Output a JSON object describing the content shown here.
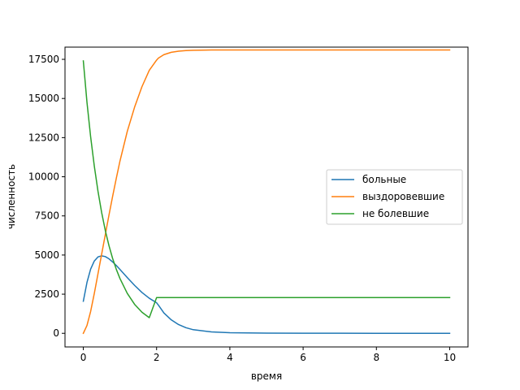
{
  "chart_data": {
    "type": "line",
    "title": "",
    "xlabel": "время",
    "ylabel": "численность",
    "xlim": [
      -0.5,
      10.5
    ],
    "ylim": [
      -870,
      18280
    ],
    "xticks": [
      0,
      2,
      4,
      6,
      8,
      10
    ],
    "yticks": [
      0,
      2500,
      5000,
      7500,
      10000,
      12500,
      15000,
      17500
    ],
    "grid": false,
    "legend_position": "center-right",
    "x": [
      0,
      0.1,
      0.2,
      0.3,
      0.4,
      0.5,
      0.6,
      0.7,
      0.8,
      0.9,
      1.0,
      1.2,
      1.4,
      1.6,
      1.8,
      2.0,
      2.05,
      2.2,
      2.4,
      2.6,
      2.8,
      3.0,
      3.5,
      4.0,
      5.0,
      6.0,
      7.0,
      8.0,
      9.0,
      10.0
    ],
    "series": [
      {
        "name": "больные",
        "color": "#1f77b4",
        "values": [
          2050,
          3250,
          4100,
          4620,
          4880,
          4950,
          4900,
          4760,
          4560,
          4330,
          4080,
          3560,
          3060,
          2610,
          2240,
          1950,
          1800,
          1300,
          860,
          560,
          360,
          230,
          90,
          40,
          12,
          5,
          3,
          2,
          1,
          0
        ]
      },
      {
        "name": "выздоровевшие",
        "color": "#ff7f0e",
        "values": [
          0,
          500,
          1400,
          2550,
          3800,
          5050,
          6300,
          7550,
          8750,
          9900,
          11000,
          12900,
          14450,
          15750,
          16800,
          17450,
          17580,
          17800,
          17950,
          18020,
          18060,
          18080,
          18095,
          18100,
          18100,
          18100,
          18100,
          18100,
          18100,
          18100
        ]
      },
      {
        "name": "не болевшие",
        "color": "#2ca02c",
        "values": [
          17400,
          14750,
          12550,
          10680,
          9080,
          7720,
          6570,
          5600,
          4780,
          4090,
          3500,
          2550,
          1850,
          1350,
          1000,
          2280,
          2280,
          2280,
          2280,
          2280,
          2280,
          2280,
          2280,
          2280,
          2280,
          2280,
          2280,
          2280,
          2280,
          2280
        ]
      }
    ]
  }
}
